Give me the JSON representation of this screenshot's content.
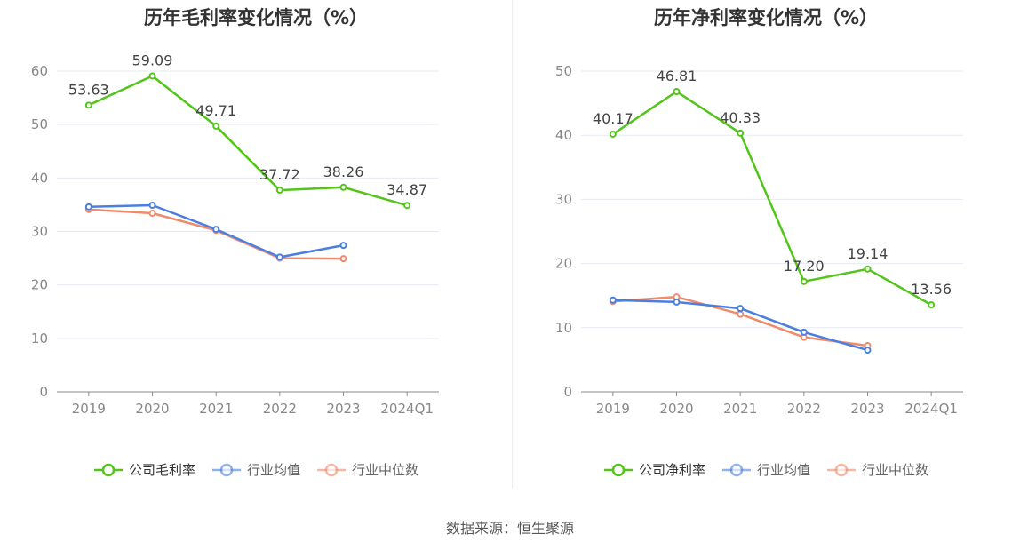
{
  "source_text": "数据来源：恒生聚源",
  "chart_data": [
    {
      "type": "line",
      "title": "历年毛利率变化情况（%）",
      "categories": [
        "2019",
        "2020",
        "2021",
        "2022",
        "2023",
        "2024Q1"
      ],
      "ylim": [
        0,
        60
      ],
      "yticks": [
        0,
        10,
        20,
        30,
        40,
        50,
        60
      ],
      "grid": true,
      "legend_position": "bottom-center",
      "series": [
        {
          "name": "公司毛利率",
          "color": "#52c41a",
          "values": [
            53.63,
            59.09,
            49.71,
            37.72,
            38.26,
            34.87
          ],
          "show_labels": true
        },
        {
          "name": "行业均值",
          "color": "#4a7fe0",
          "values": [
            34.6,
            34.9,
            30.4,
            25.2,
            27.4,
            null
          ],
          "show_labels": false
        },
        {
          "name": "行业中位数",
          "color": "#f08a6b",
          "values": [
            34.1,
            33.4,
            30.2,
            25.0,
            24.9,
            null
          ],
          "show_labels": false
        }
      ]
    },
    {
      "type": "line",
      "title": "历年净利率变化情况（%）",
      "categories": [
        "2019",
        "2020",
        "2021",
        "2022",
        "2023",
        "2024Q1"
      ],
      "ylim": [
        0,
        50
      ],
      "yticks": [
        0,
        10,
        20,
        30,
        40,
        50
      ],
      "grid": true,
      "legend_position": "bottom-center",
      "series": [
        {
          "name": "公司净利率",
          "color": "#52c41a",
          "values": [
            40.17,
            46.81,
            40.33,
            17.2,
            19.14,
            13.56
          ],
          "show_labels": true
        },
        {
          "name": "行业均值",
          "color": "#4a7fe0",
          "values": [
            14.3,
            14.0,
            13.0,
            9.3,
            6.5,
            null
          ],
          "show_labels": false
        },
        {
          "name": "行业中位数",
          "color": "#f08a6b",
          "values": [
            14.1,
            14.8,
            12.1,
            8.5,
            7.2,
            null
          ],
          "show_labels": false
        }
      ]
    }
  ]
}
